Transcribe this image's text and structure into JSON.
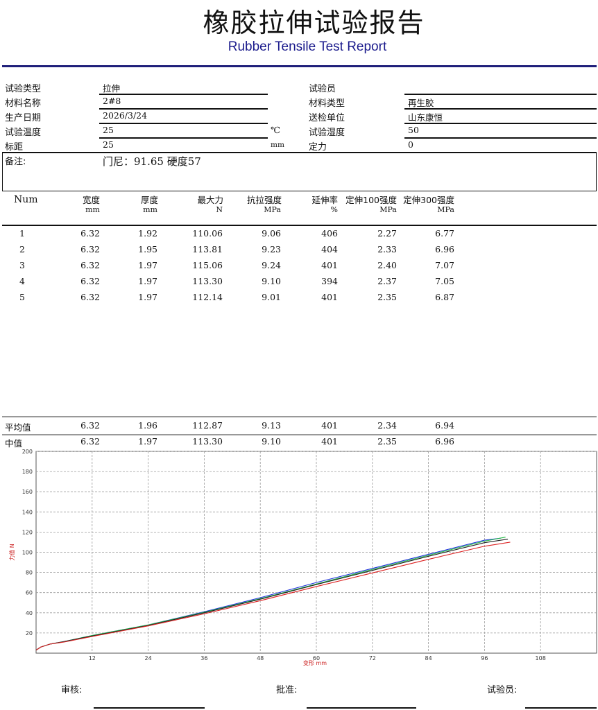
{
  "title_cn": "橡胶拉伸试验报告",
  "title_en": "Rubber Tensile Test Report",
  "info": {
    "test_type_label": "试验类型",
    "test_type_value": "拉伸",
    "material_name_label": "材料名称",
    "material_name_value": "2#8",
    "production_date_label": "生产日期",
    "production_date_value": "2026/3/24",
    "test_temp_label": "试验温度",
    "test_temp_value": "25",
    "test_temp_unit": "℃",
    "gauge_label": "标距",
    "gauge_value": "25",
    "gauge_unit": "mm",
    "remarks_label": "备注:",
    "remarks_value": "门尼：91.65  硬度57",
    "tester_label": "试验员",
    "tester_value": "",
    "material_type_label": "材料类型",
    "material_type_value": "再生胶",
    "submitter_label": "送检单位",
    "submitter_value": "山东康恒",
    "humidity_label": "试验湿度",
    "humidity_value": "50",
    "fixed_force_label": "定力",
    "fixed_force_value": "0"
  },
  "table": {
    "headers": [
      "Num",
      "宽度",
      "厚度",
      "最大力",
      "抗拉强度",
      "延伸率",
      "定伸100强度",
      "定伸300强度"
    ],
    "units": [
      "",
      "mm",
      "mm",
      "N",
      "MPa",
      "%",
      "MPa",
      "MPa"
    ],
    "rows": [
      [
        "1",
        "6.32",
        "1.92",
        "110.06",
        "9.06",
        "406",
        "2.27",
        "6.77"
      ],
      [
        "2",
        "6.32",
        "1.95",
        "113.81",
        "9.23",
        "404",
        "2.33",
        "6.96"
      ],
      [
        "3",
        "6.32",
        "1.97",
        "115.06",
        "9.24",
        "401",
        "2.40",
        "7.07"
      ],
      [
        "4",
        "6.32",
        "1.97",
        "113.30",
        "9.10",
        "394",
        "2.37",
        "7.05"
      ],
      [
        "5",
        "6.32",
        "1.97",
        "112.14",
        "9.01",
        "401",
        "2.35",
        "6.87"
      ]
    ],
    "summary": [
      [
        "平均值",
        "6.32",
        "1.96",
        "112.87",
        "9.13",
        "401",
        "2.34",
        "6.94"
      ],
      [
        "中值",
        "6.32",
        "1.97",
        "113.30",
        "9.10",
        "401",
        "2.35",
        "6.96"
      ]
    ]
  },
  "chart_data": {
    "type": "line",
    "xlabel": "变形  mm",
    "ylabel": "力值 N",
    "xlim": [
      0,
      120
    ],
    "ylim": [
      0,
      200
    ],
    "xticks": [
      12,
      24,
      36,
      48,
      60,
      72,
      84,
      96,
      108
    ],
    "yticks": [
      20,
      40,
      60,
      80,
      100,
      120,
      140,
      160,
      180,
      200
    ],
    "grid": true,
    "series": [
      {
        "color": "#2233dd",
        "x": [
          0,
          1,
          3,
          6,
          12,
          24,
          36,
          48,
          60,
          72,
          84,
          96,
          99.5
        ],
        "y": [
          3,
          6,
          9,
          11.5,
          17.5,
          28,
          41,
          55,
          70,
          84,
          98,
          112,
          114
        ]
      },
      {
        "color": "#22bb44",
        "x": [
          0,
          1,
          3,
          6,
          12,
          24,
          36,
          48,
          60,
          72,
          84,
          96,
          100.5
        ],
        "y": [
          3,
          6,
          9,
          11.5,
          17.5,
          28,
          40.5,
          54,
          68.5,
          83,
          97,
          111,
          115
        ]
      },
      {
        "color": "#222222",
        "x": [
          0,
          1,
          3,
          6,
          12,
          24,
          36,
          48,
          60,
          72,
          84,
          96,
          101
        ],
        "y": [
          3,
          6,
          9,
          11.5,
          17,
          27.5,
          40,
          53.5,
          68,
          82,
          96,
          109.5,
          113
        ]
      },
      {
        "color": "#dd2222",
        "x": [
          0,
          1,
          3,
          6,
          12,
          24,
          36,
          48,
          60,
          72,
          84,
          96,
          101.5
        ],
        "y": [
          3,
          6,
          9,
          11,
          16.5,
          27,
          39,
          52,
          66,
          79.5,
          93,
          106,
          110
        ]
      }
    ]
  },
  "signatures": {
    "reviewer_label": "审核:",
    "approver_label": "批准:",
    "tester_label": "试验员:"
  }
}
